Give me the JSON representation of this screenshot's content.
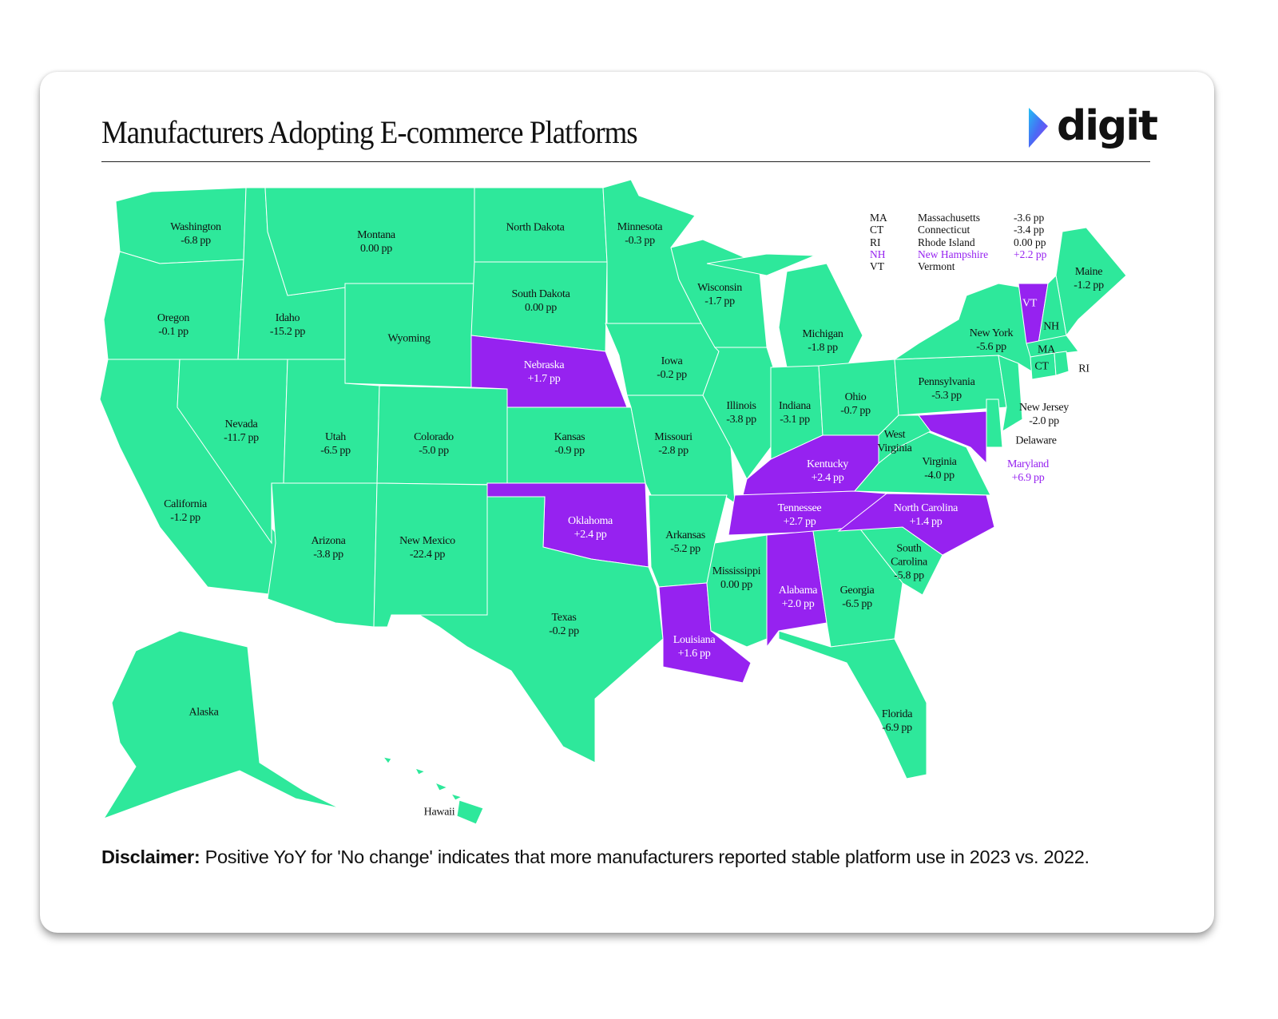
{
  "title": "Manufacturers Adopting E-commerce Platforms",
  "logo": "digit",
  "disclaimer": {
    "label": "Disclaimer:",
    "text": "Positive YoY for 'No change' indicates that more manufacturers reported stable platform use in 2023 vs. 2022."
  },
  "states": [
    {
      "name": "Washington",
      "value": "-6.8 pp",
      "color": "#2ee89b",
      "text_color": "#111111"
    },
    {
      "name": "Oregon",
      "value": "-0.1 pp",
      "color": "#2ee89b",
      "text_color": "#111111"
    },
    {
      "name": "California",
      "value": "-1.2 pp",
      "color": "#2ee89b",
      "text_color": "#111111"
    },
    {
      "name": "Nevada",
      "value": "-11.7 pp",
      "color": "#2ee89b",
      "text_color": "#111111"
    },
    {
      "name": "Idaho",
      "value": "-15.2 pp",
      "color": "#2ee89b",
      "text_color": "#111111"
    },
    {
      "name": "Montana",
      "value": "0.00 pp",
      "color": "#2ee89b",
      "text_color": "#111111"
    },
    {
      "name": "Wyoming",
      "color": "#2ee89b",
      "text_color": "#111111"
    },
    {
      "name": "Utah",
      "value": "-6.5 pp",
      "color": "#2ee89b",
      "text_color": "#111111"
    },
    {
      "name": "Colorado",
      "value": "-5.0 pp",
      "color": "#2ee89b",
      "text_color": "#111111"
    },
    {
      "name": "Arizona",
      "value": "-3.8 pp",
      "color": "#2ee89b",
      "text_color": "#111111"
    },
    {
      "name": "New Mexico",
      "value": "-22.4 pp",
      "color": "#2ee89b",
      "text_color": "#111111"
    },
    {
      "name": "North Dakota",
      "color": "#2ee89b",
      "text_color": "#111111"
    },
    {
      "name": "South Dakota",
      "value": "0.00 pp",
      "color": "#2ee89b",
      "text_color": "#111111"
    },
    {
      "name": "Nebraska",
      "value": "+1.7 pp",
      "color": "#9622f0",
      "text_color": "#ffffff"
    },
    {
      "name": "Kansas",
      "value": "-0.9 pp",
      "color": "#2ee89b",
      "text_color": "#111111"
    },
    {
      "name": "Oklahoma",
      "value": "+2.4 pp",
      "color": "#9622f0",
      "text_color": "#ffffff"
    },
    {
      "name": "Texas",
      "value": "-0.2 pp",
      "color": "#2ee89b",
      "text_color": "#111111"
    },
    {
      "name": "Minnesota",
      "value": "-0.3 pp",
      "color": "#2ee89b",
      "text_color": "#111111"
    },
    {
      "name": "Iowa",
      "value": "-0.2 pp",
      "color": "#2ee89b",
      "text_color": "#111111"
    },
    {
      "name": "Missouri",
      "value": "-2.8 pp",
      "color": "#2ee89b",
      "text_color": "#111111"
    },
    {
      "name": "Arkansas",
      "value": "-5.2 pp",
      "color": "#2ee89b",
      "text_color": "#111111"
    },
    {
      "name": "Louisiana",
      "value": "+1.6 pp",
      "color": "#9622f0",
      "text_color": "#ffffff"
    },
    {
      "name": "Wisconsin",
      "value": "-1.7 pp",
      "color": "#2ee89b",
      "text_color": "#111111"
    },
    {
      "name": "Illinois",
      "value": "-3.8 pp",
      "color": "#2ee89b",
      "text_color": "#111111"
    },
    {
      "name": "Michigan",
      "value": "-1.8 pp",
      "color": "#2ee89b",
      "text_color": "#111111"
    },
    {
      "name": "Indiana",
      "value": "-3.1 pp",
      "color": "#2ee89b",
      "text_color": "#111111"
    },
    {
      "name": "Ohio",
      "value": "-0.7 pp",
      "color": "#2ee89b",
      "text_color": "#111111"
    },
    {
      "name": "Kentucky",
      "value": "+2.4 pp",
      "color": "#9622f0",
      "text_color": "#ffffff"
    },
    {
      "name": "Tennessee",
      "value": "+2.7 pp",
      "color": "#9622f0",
      "text_color": "#ffffff"
    },
    {
      "name": "Mississippi",
      "value": "0.00 pp",
      "color": "#2ee89b",
      "text_color": "#111111"
    },
    {
      "name": "Alabama",
      "value": "+2.0 pp",
      "color": "#9622f0",
      "text_color": "#ffffff"
    },
    {
      "name": "Georgia",
      "value": "-6.5 pp",
      "color": "#2ee89b",
      "text_color": "#111111"
    },
    {
      "name": "Florida",
      "value": "-6.9 pp",
      "color": "#2ee89b",
      "text_color": "#111111"
    },
    {
      "name": "South Carolina",
      "value": "-5.8 pp",
      "color": "#2ee89b",
      "text_color": "#111111"
    },
    {
      "name": "North Carolina",
      "value": "+1.4 pp",
      "color": "#9622f0",
      "text_color": "#ffffff"
    },
    {
      "name": "Virginia",
      "value": "-4.0 pp",
      "color": "#2ee89b",
      "text_color": "#111111"
    },
    {
      "name": "West Virginia",
      "color": "#2ee89b",
      "text_color": "#111111"
    },
    {
      "name": "Pennsylvania",
      "value": "-5.3 pp",
      "color": "#2ee89b",
      "text_color": "#111111"
    },
    {
      "name": "New York",
      "value": "-5.6 pp",
      "color": "#2ee89b",
      "text_color": "#111111"
    },
    {
      "name": "New Jersey",
      "value": "-2.0 pp",
      "color": "#2ee89b",
      "text_color": "#111111"
    },
    {
      "name": "Delaware",
      "color": "#2ee89b",
      "text_color": "#111111"
    },
    {
      "name": "Maryland",
      "value": "+6.9 pp",
      "color": "#9622f0",
      "text_color": "#9622f0"
    },
    {
      "name": "Maine",
      "value": "-1.2 pp",
      "color": "#2ee89b",
      "text_color": "#111111"
    },
    {
      "abbr": "VT",
      "color": "#9622f0",
      "text_color": "#ffffff"
    },
    {
      "abbr": "NH",
      "color": "#2ee89b",
      "text_color": "#111111"
    },
    {
      "abbr": "MA",
      "color": "#2ee89b",
      "text_color": "#111111"
    },
    {
      "abbr": "CT",
      "color": "#2ee89b",
      "text_color": "#111111"
    },
    {
      "abbr": "RI",
      "color": "#2ee89b",
      "text_color": "#111111"
    },
    {
      "name": "Alaska",
      "color": "#2ee89b",
      "text_color": "#111111"
    },
    {
      "name": "Hawaii",
      "color": "#2ee89b",
      "text_color": "#111111"
    }
  ],
  "legend": [
    {
      "abbr": "MA",
      "name": "Massachusetts",
      "value": "-3.6 pp",
      "color": "#111111"
    },
    {
      "abbr": "CT",
      "name": "Connecticut",
      "value": "-3.4 pp",
      "color": "#111111"
    },
    {
      "abbr": "RI",
      "name": "Rhode Island",
      "value": "0.00 pp",
      "color": "#111111"
    },
    {
      "abbr": "NH",
      "name": "New Hampshire",
      "value": "+2.2 pp",
      "color": "#9622f0"
    },
    {
      "abbr": "VT",
      "name": "Vermont",
      "color": "#111111"
    }
  ]
}
